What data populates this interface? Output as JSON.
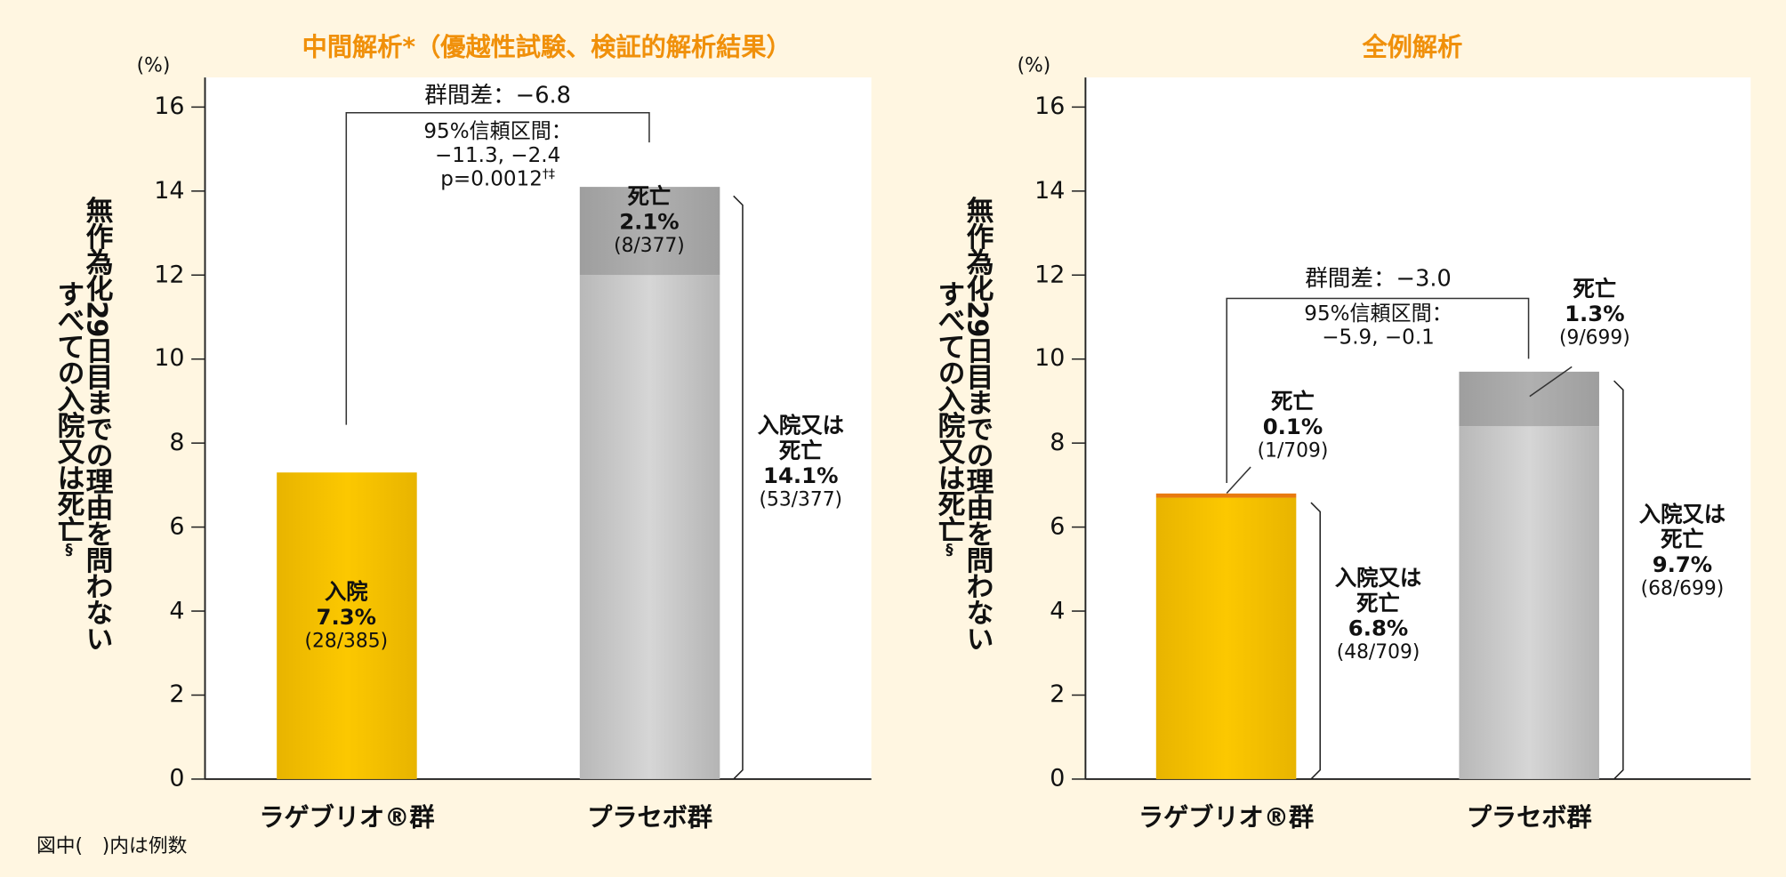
{
  "footnote": "図中(　)内は例数",
  "colors": {
    "title": "#f0900a",
    "drug_bar": "#f5c000",
    "drug_death": "#e87a10",
    "placebo_bar": "#c8c8c8",
    "placebo_death": "#a8a8a8",
    "background": "#fff6e1"
  },
  "chart_data": [
    {
      "type": "bar",
      "stacked": true,
      "title": "中間解析*（優越性試験、検証的解析結果）",
      "unit": "(%)",
      "ylabel_line1": "無作為化29日目までの理由を問わない",
      "ylabel_line2": "すべての入院又は死亡",
      "ylabel_mark": "§",
      "ylim": [
        0,
        16
      ],
      "yticks": [
        "0",
        "2",
        "4",
        "6",
        "8",
        "10",
        "12",
        "14",
        "16"
      ],
      "categories": [
        "ラゲブリオ®群",
        "プラセボ群"
      ],
      "bars": [
        {
          "total": 7.3,
          "death": 0,
          "labels": [
            {
              "line1": "入院",
              "pct": "7.3%",
              "n": "(28/385)"
            }
          ]
        },
        {
          "total": 14.1,
          "death": 2.1,
          "labels": [
            {
              "line1": "死亡",
              "pct": "2.1%",
              "n": "(8/377)"
            },
            {
              "line1": "入院又は",
              "line2": "死亡",
              "pct": "14.1%",
              "n": "(53/377)"
            }
          ]
        }
      ],
      "difference": "群間差：−6.8",
      "ci_label": "95%信頼区間：",
      "ci": "−11.3, −2.4",
      "p_value": "p=0.0012",
      "p_marks": "†‡"
    },
    {
      "type": "bar",
      "stacked": true,
      "title": "全例解析",
      "unit": "(%)",
      "ylabel_line1": "無作為化29日目までの理由を問わない",
      "ylabel_line2": "すべての入院又は死亡",
      "ylabel_mark": "§",
      "ylim": [
        0,
        16
      ],
      "yticks": [
        "0",
        "2",
        "4",
        "6",
        "8",
        "10",
        "12",
        "14",
        "16"
      ],
      "categories": [
        "ラゲブリオ®群",
        "プラセボ群"
      ],
      "bars": [
        {
          "total": 6.8,
          "death": 0.1,
          "labels": [
            {
              "line1": "死亡",
              "pct": "0.1%",
              "n": "(1/709)"
            },
            {
              "line1": "入院又は",
              "line2": "死亡",
              "pct": "6.8%",
              "n": "(48/709)"
            }
          ]
        },
        {
          "total": 9.7,
          "death": 1.3,
          "labels": [
            {
              "line1": "死亡",
              "pct": "1.3%",
              "n": "(9/699)"
            },
            {
              "line1": "入院又は",
              "line2": "死亡",
              "pct": "9.7%",
              "n": "(68/699)"
            }
          ]
        }
      ],
      "difference": "群間差：−3.0",
      "ci_label": "95%信頼区間：",
      "ci": "−5.9, −0.1"
    }
  ]
}
